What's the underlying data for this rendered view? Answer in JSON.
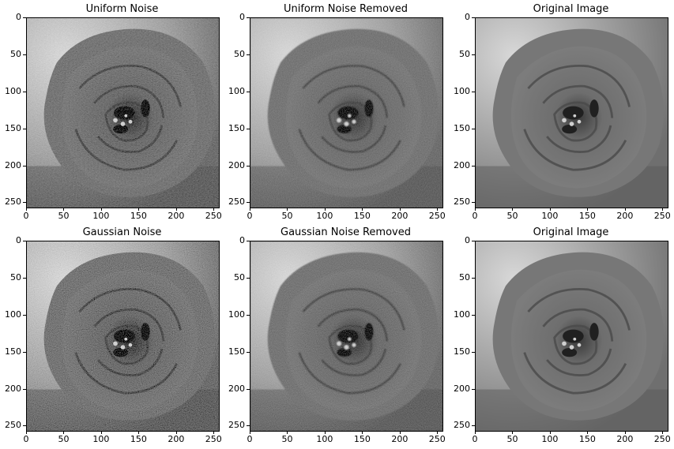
{
  "panels": [
    {
      "title": "Uniform Noise",
      "noise": "uniform",
      "smooth": false
    },
    {
      "title": "Uniform Noise Removed",
      "noise": "uniform",
      "smooth": true
    },
    {
      "title": "Original Image",
      "noise": "none",
      "smooth": false
    },
    {
      "title": "Gaussian Noise",
      "noise": "gaussian",
      "smooth": false
    },
    {
      "title": "Gaussian Noise Removed",
      "noise": "gaussian",
      "smooth": true
    },
    {
      "title": "Original Image",
      "noise": "none",
      "smooth": false
    }
  ],
  "axes": {
    "x_ticks": [
      "0",
      "50",
      "100",
      "150",
      "200",
      "250"
    ],
    "y_ticks": [
      "0",
      "50",
      "100",
      "150",
      "200",
      "250"
    ],
    "x_range": [
      0,
      256
    ],
    "y_range": [
      0,
      256
    ]
  },
  "colors": {
    "image_dark": "#2a2a2a",
    "image_mid": "#7a7a7a",
    "image_light": "#cfcfcf"
  }
}
